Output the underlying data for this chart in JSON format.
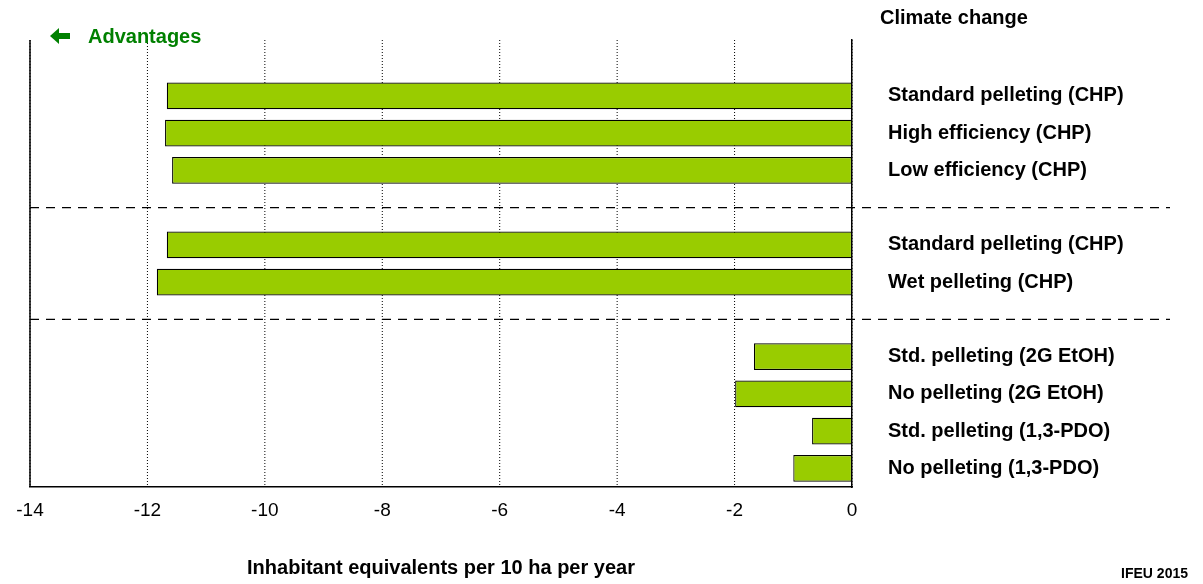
{
  "chart_data": {
    "type": "bar",
    "orientation": "horizontal",
    "title": "Climate change",
    "xlabel": "Inhabitant equivalents per 10 ha per year",
    "categories": [
      null,
      "Standard pelleting (CHP)",
      "High efficiency (CHP)",
      "Low efficiency (CHP)",
      null,
      "Standard pelleting (CHP)",
      "Wet pelleting (CHP)",
      null,
      "Std. pelleting (2G EtOH)",
      "No pelleting (2G EtOH)",
      "Std. pelleting (1,3-PDO)",
      "No pelleting (1,3-PDO)"
    ],
    "values": [
      null,
      -11.67,
      -11.7,
      -11.58,
      null,
      -11.67,
      -11.84,
      null,
      -1.67,
      -1.99,
      -0.68,
      -1.0
    ],
    "color": "#99cc00",
    "xlim": [
      -14,
      0
    ],
    "xticks": [
      -14,
      -12,
      -10,
      -8,
      -6,
      -4,
      -2,
      0
    ],
    "grid": "x",
    "annotations": [
      "Advantages",
      "IFEU 2015"
    ]
  }
}
